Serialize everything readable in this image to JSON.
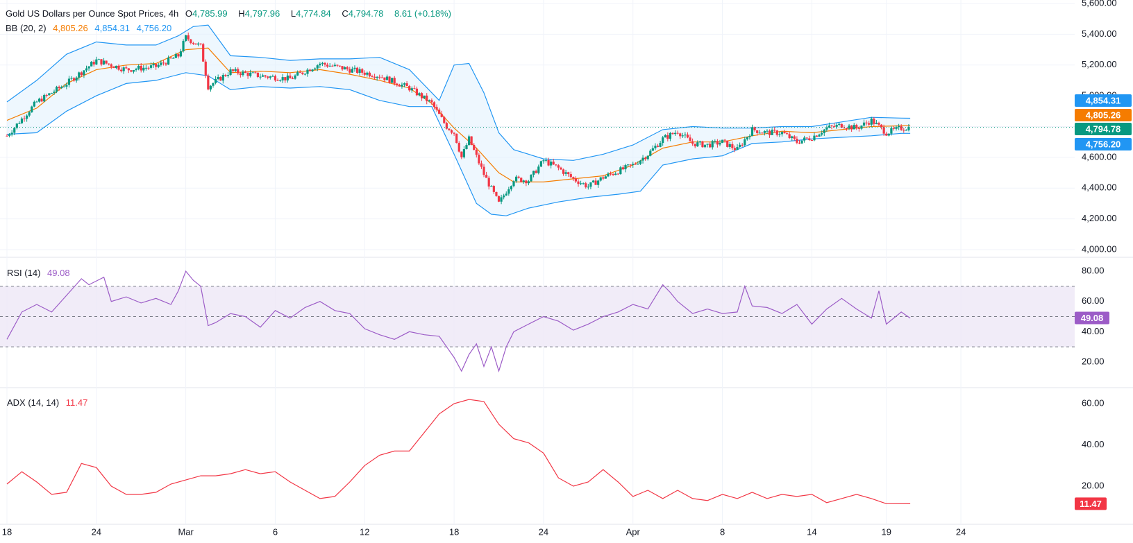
{
  "header": {
    "title": "Gold US Dollars per Ounce Spot Prices, 4h",
    "o_label": "O",
    "open": "4,785.99",
    "h_label": "H",
    "high": "4,797.96",
    "l_label": "L",
    "low": "4,774.84",
    "c_label": "C",
    "close": "4,794.78",
    "change": "8.61 (+0.18%)"
  },
  "bb_legend": {
    "label": "BB (20, 2)",
    "basis": "4,805.26",
    "upper": "4,854.31",
    "lower": "4,756.20"
  },
  "rsi_legend": {
    "label": "RSI (14)",
    "value": "49.08"
  },
  "adx_legend": {
    "label": "ADX (14, 14)",
    "value": "11.47"
  },
  "colors": {
    "up": "#089981",
    "down": "#f23645",
    "bb_band": "#2196f3",
    "bb_basis": "#f57c00",
    "bb_fill": "#e3f2fd",
    "rsi": "#9c5cc7",
    "rsi_band": "#ede7f6",
    "adx": "#f23645",
    "grid": "#f0f3fa"
  },
  "chart_data": [
    {
      "type": "candlestick",
      "title": "Gold US Dollars per Ounce Spot Prices, 4h",
      "y_ticks": [
        "5,600.00",
        "5,400.00",
        "5,200.00",
        "4,800.00",
        "4,600.00",
        "4,400.00",
        "4,200.00",
        "4,000.00"
      ],
      "ylim": [
        4000,
        5600
      ],
      "x_ticks": [
        "18",
        "24",
        "Mar",
        "6",
        "12",
        "18",
        "24",
        "Apr",
        "8",
        "14",
        "19",
        "24"
      ],
      "price_badges": [
        {
          "value": "4,854.31",
          "color": "#2196f3"
        },
        {
          "value": "4,805.26",
          "color": "#f57c00"
        },
        {
          "value": "4,794.78",
          "color": "#089981"
        },
        {
          "value": "4,756.20",
          "color": "#2196f3"
        }
      ],
      "close_path": [
        [
          18,
          4740
        ],
        [
          20,
          4960
        ],
        [
          22,
          5080
        ],
        [
          24,
          5230
        ],
        [
          26,
          5170
        ],
        [
          28,
          5190
        ],
        [
          29.5,
          5260
        ],
        [
          30,
          5380
        ],
        [
          31,
          5320
        ],
        [
          31.5,
          5060
        ],
        [
          33,
          5160
        ],
        [
          35,
          5130
        ],
        [
          37,
          5110
        ],
        [
          39,
          5210
        ],
        [
          41,
          5170
        ],
        [
          43,
          5130
        ],
        [
          45,
          5050
        ],
        [
          46.5,
          4950
        ],
        [
          47.5,
          4800
        ],
        [
          48,
          4760
        ],
        [
          48.5,
          4600
        ],
        [
          49,
          4720
        ],
        [
          50,
          4490
        ],
        [
          51,
          4300
        ],
        [
          52,
          4460
        ],
        [
          53,
          4450
        ],
        [
          54,
          4580
        ],
        [
          55,
          4530
        ],
        [
          56,
          4460
        ],
        [
          57,
          4410
        ],
        [
          58,
          4470
        ],
        [
          59,
          4510
        ],
        [
          60,
          4550
        ],
        [
          61,
          4620
        ],
        [
          62,
          4720
        ],
        [
          63,
          4770
        ],
        [
          64,
          4690
        ],
        [
          65,
          4680
        ],
        [
          66,
          4700
        ],
        [
          67,
          4650
        ],
        [
          68,
          4780
        ],
        [
          69,
          4760
        ],
        [
          70,
          4760
        ],
        [
          71,
          4700
        ],
        [
          72,
          4730
        ],
        [
          73,
          4790
        ],
        [
          74,
          4810
        ],
        [
          75,
          4790
        ],
        [
          76,
          4840
        ],
        [
          77,
          4760
        ],
        [
          78,
          4790
        ],
        [
          78.6,
          4795
        ]
      ],
      "bb_upper": [
        [
          18,
          4960
        ],
        [
          20,
          5100
        ],
        [
          22,
          5270
        ],
        [
          24,
          5350
        ],
        [
          26,
          5330
        ],
        [
          28,
          5330
        ],
        [
          29.5,
          5390
        ],
        [
          30.5,
          5450
        ],
        [
          31.5,
          5460
        ],
        [
          33,
          5260
        ],
        [
          35,
          5250
        ],
        [
          37,
          5230
        ],
        [
          39,
          5240
        ],
        [
          41,
          5240
        ],
        [
          43,
          5250
        ],
        [
          45,
          5170
        ],
        [
          47,
          4970
        ],
        [
          48,
          5200
        ],
        [
          49,
          5210
        ],
        [
          50,
          5020
        ],
        [
          51,
          4760
        ],
        [
          52,
          4650
        ],
        [
          54,
          4590
        ],
        [
          56,
          4580
        ],
        [
          58,
          4620
        ],
        [
          60,
          4680
        ],
        [
          62,
          4780
        ],
        [
          64,
          4800
        ],
        [
          66,
          4790
        ],
        [
          68,
          4790
        ],
        [
          70,
          4800
        ],
        [
          72,
          4800
        ],
        [
          74,
          4830
        ],
        [
          76,
          4860
        ],
        [
          78,
          4855
        ],
        [
          78.6,
          4854
        ]
      ],
      "bb_basis": [
        [
          18,
          4840
        ],
        [
          20,
          4920
        ],
        [
          22,
          5080
        ],
        [
          24,
          5170
        ],
        [
          26,
          5200
        ],
        [
          28,
          5210
        ],
        [
          30,
          5300
        ],
        [
          31.5,
          5310
        ],
        [
          33,
          5150
        ],
        [
          35,
          5160
        ],
        [
          37,
          5150
        ],
        [
          39,
          5170
        ],
        [
          41,
          5140
        ],
        [
          43,
          5100
        ],
        [
          45,
          5050
        ],
        [
          46.5,
          4950
        ],
        [
          48,
          4790
        ],
        [
          49.5,
          4660
        ],
        [
          51,
          4500
        ],
        [
          52,
          4440
        ],
        [
          54,
          4440
        ],
        [
          56,
          4460
        ],
        [
          58,
          4480
        ],
        [
          60,
          4550
        ],
        [
          62,
          4660
        ],
        [
          64,
          4700
        ],
        [
          66,
          4700
        ],
        [
          68,
          4740
        ],
        [
          70,
          4770
        ],
        [
          72,
          4760
        ],
        [
          74,
          4780
        ],
        [
          76,
          4800
        ],
        [
          78,
          4805
        ],
        [
          78.6,
          4805
        ]
      ],
      "bb_lower": [
        [
          18,
          4750
        ],
        [
          20,
          4760
        ],
        [
          22,
          4900
        ],
        [
          24,
          5000
        ],
        [
          26,
          5080
        ],
        [
          28,
          5100
        ],
        [
          30,
          5150
        ],
        [
          31.5,
          5130
        ],
        [
          33,
          5040
        ],
        [
          35,
          5060
        ],
        [
          37,
          5050
        ],
        [
          39,
          5060
        ],
        [
          41,
          5040
        ],
        [
          43,
          4970
        ],
        [
          45,
          4930
        ],
        [
          46.5,
          4930
        ],
        [
          48,
          4620
        ],
        [
          49.5,
          4300
        ],
        [
          50.5,
          4230
        ],
        [
          51.5,
          4220
        ],
        [
          53,
          4270
        ],
        [
          55,
          4310
        ],
        [
          57,
          4340
        ],
        [
          59,
          4360
        ],
        [
          60.5,
          4380
        ],
        [
          62,
          4550
        ],
        [
          64,
          4590
        ],
        [
          66,
          4610
        ],
        [
          68,
          4690
        ],
        [
          70,
          4700
        ],
        [
          72,
          4720
        ],
        [
          74,
          4730
        ],
        [
          76,
          4740
        ],
        [
          78,
          4756
        ],
        [
          78.6,
          4756
        ]
      ]
    },
    {
      "type": "line",
      "title": "RSI (14)",
      "y_ticks": [
        "80.00",
        "60.00",
        "40.00",
        "20.00"
      ],
      "ylim": [
        10,
        85
      ],
      "band": [
        30,
        70
      ],
      "midline": 50,
      "current": "49.08",
      "series": [
        {
          "name": "RSI (14)",
          "values": [
            [
              18,
              35
            ],
            [
              19,
              53
            ],
            [
              20,
              58
            ],
            [
              21,
              53
            ],
            [
              22,
              64
            ],
            [
              23,
              75
            ],
            [
              23.5,
              71
            ],
            [
              24.5,
              76
            ],
            [
              25,
              60
            ],
            [
              26,
              63
            ],
            [
              27,
              59
            ],
            [
              28,
              62
            ],
            [
              29,
              58
            ],
            [
              29.5,
              67
            ],
            [
              30,
              80
            ],
            [
              30.5,
              74
            ],
            [
              31,
              70
            ],
            [
              31.5,
              44
            ],
            [
              32,
              46
            ],
            [
              33,
              52
            ],
            [
              34,
              50
            ],
            [
              35,
              43
            ],
            [
              36,
              54
            ],
            [
              37,
              49
            ],
            [
              38,
              56
            ],
            [
              39,
              60
            ],
            [
              40,
              54
            ],
            [
              41,
              52
            ],
            [
              42,
              42
            ],
            [
              43,
              38
            ],
            [
              44,
              35
            ],
            [
              45,
              40
            ],
            [
              46,
              38
            ],
            [
              47,
              37
            ],
            [
              47.5,
              30
            ],
            [
              48,
              23
            ],
            [
              48.5,
              14
            ],
            [
              49,
              25
            ],
            [
              49.5,
              32
            ],
            [
              50,
              17
            ],
            [
              50.5,
              30
            ],
            [
              51,
              14
            ],
            [
              51.5,
              30
            ],
            [
              52,
              40
            ],
            [
              53,
              45
            ],
            [
              54,
              50
            ],
            [
              55,
              47
            ],
            [
              56,
              41
            ],
            [
              57,
              45
            ],
            [
              58,
              50
            ],
            [
              59,
              53
            ],
            [
              60,
              58
            ],
            [
              61,
              55
            ],
            [
              62,
              71
            ],
            [
              62.5,
              66
            ],
            [
              63,
              60
            ],
            [
              64,
              52
            ],
            [
              65,
              55
            ],
            [
              66,
              52
            ],
            [
              67,
              53
            ],
            [
              67.5,
              70
            ],
            [
              68,
              57
            ],
            [
              69,
              56
            ],
            [
              70,
              52
            ],
            [
              71,
              58
            ],
            [
              72,
              45
            ],
            [
              73,
              55
            ],
            [
              74,
              62
            ],
            [
              75,
              55
            ],
            [
              76,
              49
            ],
            [
              76.5,
              67
            ],
            [
              77,
              45
            ],
            [
              78,
              53
            ],
            [
              78.6,
              49
            ]
          ]
        }
      ]
    },
    {
      "type": "line",
      "title": "ADX (14, 14)",
      "y_ticks": [
        "60.00",
        "40.00",
        "20.00"
      ],
      "ylim": [
        5,
        65
      ],
      "current": "11.47",
      "series": [
        {
          "name": "ADX (14, 14)",
          "values": [
            [
              18,
              21
            ],
            [
              19,
              27
            ],
            [
              20,
              22
            ],
            [
              21,
              16
            ],
            [
              22,
              17
            ],
            [
              23,
              31
            ],
            [
              24,
              29
            ],
            [
              25,
              20
            ],
            [
              26,
              16
            ],
            [
              27,
              16
            ],
            [
              28,
              17
            ],
            [
              29,
              21
            ],
            [
              30,
              23
            ],
            [
              31,
              25
            ],
            [
              32,
              25
            ],
            [
              33,
              26
            ],
            [
              34,
              28
            ],
            [
              35,
              26
            ],
            [
              36,
              27
            ],
            [
              37,
              22
            ],
            [
              38,
              18
            ],
            [
              39,
              14
            ],
            [
              40,
              15
            ],
            [
              41,
              22
            ],
            [
              42,
              30
            ],
            [
              43,
              35
            ],
            [
              44,
              37
            ],
            [
              45,
              37
            ],
            [
              46,
              46
            ],
            [
              47,
              55
            ],
            [
              48,
              60
            ],
            [
              49,
              62
            ],
            [
              50,
              61
            ],
            [
              51,
              50
            ],
            [
              52,
              43
            ],
            [
              53,
              41
            ],
            [
              54,
              36
            ],
            [
              55,
              24
            ],
            [
              56,
              20
            ],
            [
              57,
              22
            ],
            [
              58,
              28
            ],
            [
              59,
              22
            ],
            [
              60,
              15
            ],
            [
              61,
              18
            ],
            [
              62,
              14
            ],
            [
              63,
              18
            ],
            [
              64,
              14
            ],
            [
              65,
              13
            ],
            [
              66,
              16
            ],
            [
              67,
              14
            ],
            [
              68,
              17
            ],
            [
              69,
              14
            ],
            [
              70,
              16
            ],
            [
              71,
              15
            ],
            [
              72,
              16
            ],
            [
              73,
              12
            ],
            [
              74,
              14
            ],
            [
              75,
              16
            ],
            [
              76,
              14
            ],
            [
              77,
              11.5
            ],
            [
              78.6,
              11.47
            ]
          ]
        }
      ]
    }
  ]
}
